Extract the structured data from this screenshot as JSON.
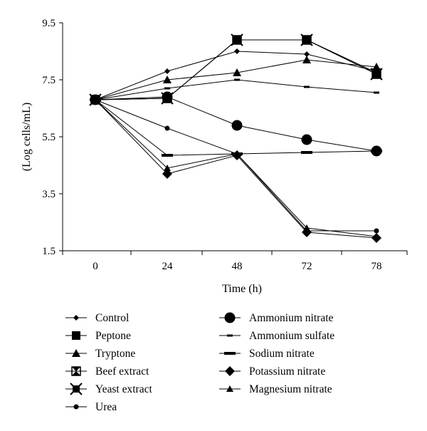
{
  "chart_data": {
    "type": "line",
    "title": "",
    "xlabel": "Time (h)",
    "ylabel": "(Log cells/mL)",
    "x": [
      0,
      24,
      48,
      72,
      78
    ],
    "x_tick_labels": [
      "0",
      "24",
      "48",
      "72",
      "78"
    ],
    "ylim": [
      1.5,
      9.5
    ],
    "y_ticks": [
      1.5,
      3.5,
      5.5,
      7.5,
      9.5
    ],
    "y_tick_labels": [
      "1.5",
      "3.5",
      "5.5",
      "7.5",
      "9.5"
    ],
    "grid": false,
    "legend_position": "bottom",
    "series": [
      {
        "name": "Control",
        "marker": "diamond-small",
        "values": [
          6.8,
          7.8,
          8.5,
          8.4,
          7.8
        ]
      },
      {
        "name": "Peptone",
        "marker": "square",
        "values": [
          6.8,
          6.85,
          8.9,
          8.9,
          7.75
        ]
      },
      {
        "name": "Tryptone",
        "marker": "triangle",
        "values": [
          6.8,
          7.5,
          7.75,
          8.2,
          7.95
        ]
      },
      {
        "name": "Beef extract",
        "marker": "bowtie",
        "values": [
          6.8,
          6.85,
          8.9,
          8.9,
          7.7
        ]
      },
      {
        "name": "Yeast extract",
        "marker": "star",
        "values": [
          6.8,
          6.85,
          8.9,
          8.9,
          7.7
        ]
      },
      {
        "name": "Urea",
        "marker": "circle-small",
        "values": [
          6.8,
          5.8,
          4.9,
          2.2,
          2.2
        ]
      },
      {
        "name": "Ammonium nitrate",
        "marker": "circle-large",
        "values": [
          6.8,
          6.9,
          5.9,
          5.4,
          5.0
        ]
      },
      {
        "name": "Ammonium sulfate",
        "marker": "dash-small",
        "values": [
          6.8,
          7.2,
          7.5,
          7.25,
          7.05
        ]
      },
      {
        "name": "Sodium nitrate",
        "marker": "dash-large",
        "values": [
          6.8,
          4.85,
          4.9,
          4.95,
          5.0
        ]
      },
      {
        "name": "Potassium nitrate",
        "marker": "diamond-large",
        "values": [
          6.8,
          4.2,
          4.85,
          2.15,
          1.95
        ]
      },
      {
        "name": "Magnesium nitrate",
        "marker": "triangle-small",
        "values": [
          6.8,
          4.4,
          4.9,
          2.3,
          2.0
        ]
      }
    ]
  }
}
